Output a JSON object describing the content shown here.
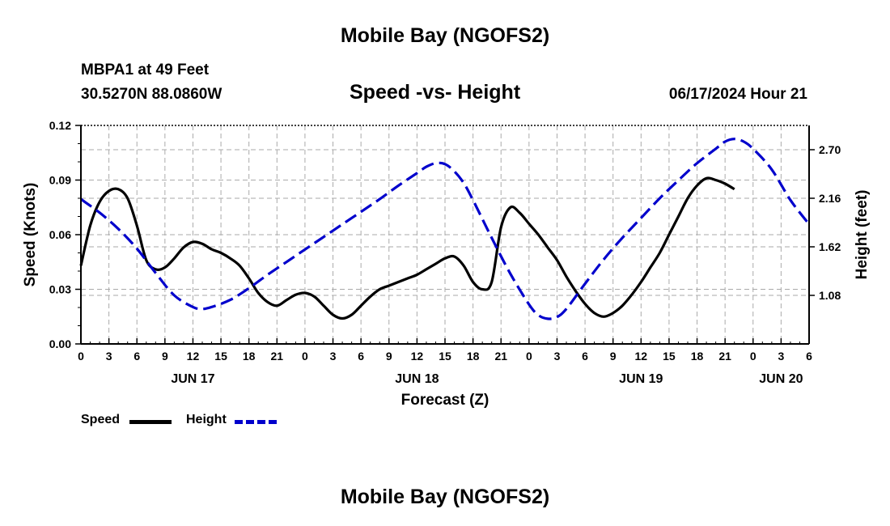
{
  "page": {
    "title": "Mobile Bay (NGOFS2)",
    "station": "MBPA1 at 49 Feet",
    "coordinates": "30.5270N  88.0860W",
    "subtitle": "Speed -vs- Height",
    "datetime": "06/17/2024 Hour 21",
    "footer_title": "Mobile Bay (NGOFS2)"
  },
  "chart_data": {
    "type": "line",
    "title": "Speed -vs- Height",
    "xlabel": "Forecast (Z)",
    "ylabel": "Speed (Knots)",
    "y2label": "Height (feet)",
    "x_unit": "hours from Jun 17 00Z",
    "xlim": [
      0,
      78
    ],
    "ylim": [
      0,
      0.12
    ],
    "y2lim": [
      0.54,
      2.97
    ],
    "x_ticks": [
      0,
      3,
      6,
      9,
      12,
      15,
      18,
      21,
      24,
      27,
      30,
      33,
      36,
      39,
      42,
      45,
      48,
      51,
      54,
      57,
      60,
      63,
      66,
      69,
      72,
      75,
      78
    ],
    "x_tick_labels": [
      "0",
      "3",
      "6",
      "9",
      "12",
      "15",
      "18",
      "21",
      "0",
      "3",
      "6",
      "9",
      "12",
      "15",
      "18",
      "21",
      "0",
      "3",
      "6",
      "9",
      "12",
      "15",
      "18",
      "21",
      "0",
      "3",
      "6"
    ],
    "y_ticks": [
      0,
      0.03,
      0.06,
      0.09,
      0.12
    ],
    "y_tick_labels": [
      "0.00",
      "0.03",
      "0.06",
      "0.09",
      "0.12"
    ],
    "y2_ticks": [
      1.08,
      1.62,
      2.16,
      2.7
    ],
    "y2_tick_labels": [
      "1.08",
      "1.62",
      "2.16",
      "2.70"
    ],
    "day_labels": [
      {
        "x": 12,
        "label": "JUN 17"
      },
      {
        "x": 36,
        "label": "JUN 18"
      },
      {
        "x": 60,
        "label": "JUN 19"
      },
      {
        "x": 75,
        "label": "JUN 20"
      }
    ],
    "grid": true,
    "series": [
      {
        "name": "Speed",
        "axis": "left",
        "color": "#000000",
        "style": "solid",
        "points": [
          [
            0,
            0.043
          ],
          [
            1,
            0.065
          ],
          [
            2,
            0.078
          ],
          [
            3,
            0.084
          ],
          [
            4,
            0.085
          ],
          [
            5,
            0.08
          ],
          [
            6,
            0.065
          ],
          [
            7,
            0.046
          ],
          [
            8,
            0.041
          ],
          [
            9,
            0.042
          ],
          [
            10,
            0.047
          ],
          [
            11,
            0.053
          ],
          [
            12,
            0.056
          ],
          [
            13,
            0.055
          ],
          [
            14,
            0.052
          ],
          [
            15,
            0.05
          ],
          [
            16,
            0.047
          ],
          [
            17,
            0.043
          ],
          [
            18,
            0.036
          ],
          [
            19,
            0.028
          ],
          [
            20,
            0.023
          ],
          [
            21,
            0.021
          ],
          [
            22,
            0.024
          ],
          [
            23,
            0.027
          ],
          [
            24,
            0.028
          ],
          [
            25,
            0.026
          ],
          [
            26,
            0.021
          ],
          [
            27,
            0.016
          ],
          [
            28,
            0.014
          ],
          [
            29,
            0.016
          ],
          [
            30,
            0.021
          ],
          [
            31,
            0.026
          ],
          [
            32,
            0.03
          ],
          [
            33,
            0.032
          ],
          [
            34,
            0.034
          ],
          [
            35,
            0.036
          ],
          [
            36,
            0.038
          ],
          [
            37,
            0.041
          ],
          [
            38,
            0.044
          ],
          [
            39,
            0.047
          ],
          [
            40,
            0.048
          ],
          [
            41,
            0.043
          ],
          [
            42,
            0.034
          ],
          [
            43,
            0.03
          ],
          [
            44,
            0.034
          ],
          [
            45,
            0.064
          ],
          [
            46,
            0.075
          ],
          [
            47,
            0.072
          ],
          [
            48,
            0.066
          ],
          [
            49,
            0.06
          ],
          [
            50,
            0.053
          ],
          [
            51,
            0.046
          ],
          [
            52,
            0.037
          ],
          [
            53,
            0.029
          ],
          [
            54,
            0.022
          ],
          [
            55,
            0.017
          ],
          [
            56,
            0.015
          ],
          [
            57,
            0.017
          ],
          [
            58,
            0.021
          ],
          [
            59,
            0.027
          ],
          [
            60,
            0.034
          ],
          [
            61,
            0.042
          ],
          [
            62,
            0.05
          ],
          [
            63,
            0.06
          ],
          [
            64,
            0.07
          ],
          [
            65,
            0.08
          ],
          [
            66,
            0.087
          ],
          [
            67,
            0.091
          ],
          [
            68,
            0.09
          ],
          [
            69,
            0.088
          ],
          [
            70,
            0.085
          ]
        ]
      },
      {
        "name": "Height",
        "axis": "right",
        "color": "#0000cc",
        "style": "dashed",
        "points": [
          [
            0,
            2.15
          ],
          [
            2,
            2.0
          ],
          [
            4,
            1.82
          ],
          [
            6,
            1.6
          ],
          [
            8,
            1.33
          ],
          [
            10,
            1.08
          ],
          [
            12,
            0.95
          ],
          [
            13,
            0.93
          ],
          [
            14,
            0.95
          ],
          [
            16,
            1.03
          ],
          [
            18,
            1.16
          ],
          [
            20,
            1.31
          ],
          [
            22,
            1.45
          ],
          [
            24,
            1.59
          ],
          [
            26,
            1.73
          ],
          [
            28,
            1.87
          ],
          [
            30,
            2.01
          ],
          [
            32,
            2.15
          ],
          [
            34,
            2.3
          ],
          [
            36,
            2.44
          ],
          [
            37,
            2.51
          ],
          [
            38,
            2.55
          ],
          [
            39,
            2.54
          ],
          [
            40,
            2.46
          ],
          [
            41,
            2.33
          ],
          [
            42,
            2.14
          ],
          [
            44,
            1.72
          ],
          [
            46,
            1.32
          ],
          [
            48,
            0.98
          ],
          [
            49,
            0.86
          ],
          [
            50,
            0.82
          ],
          [
            51,
            0.84
          ],
          [
            52,
            0.93
          ],
          [
            54,
            1.21
          ],
          [
            56,
            1.48
          ],
          [
            58,
            1.72
          ],
          [
            60,
            1.94
          ],
          [
            62,
            2.16
          ],
          [
            64,
            2.36
          ],
          [
            66,
            2.55
          ],
          [
            68,
            2.71
          ],
          [
            69,
            2.79
          ],
          [
            70,
            2.82
          ],
          [
            71,
            2.79
          ],
          [
            72,
            2.71
          ],
          [
            74,
            2.48
          ],
          [
            76,
            2.14
          ],
          [
            78,
            1.87
          ]
        ]
      }
    ],
    "legend": [
      {
        "label": "Speed",
        "color": "#000000",
        "style": "solid"
      },
      {
        "label": "Height",
        "color": "#0000cc",
        "style": "dashed"
      }
    ]
  }
}
